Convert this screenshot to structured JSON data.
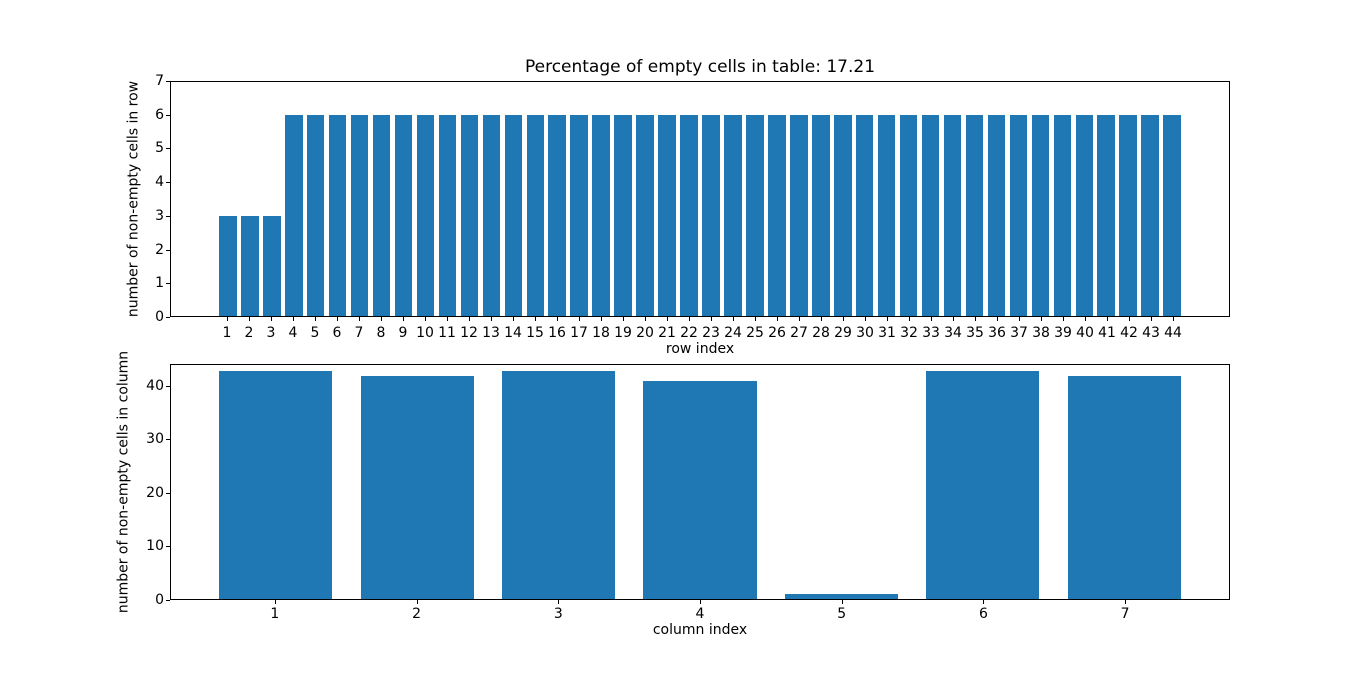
{
  "figure": {
    "background_color": "#ffffff",
    "text_color": "#000000",
    "spine_color": "#000000",
    "bar_color": "#1f77b4"
  },
  "chart_data": [
    {
      "type": "bar",
      "title": "Percentage of empty cells in table: 17.21",
      "xlabel": "row index",
      "ylabel": "number of non-empty cells in row",
      "x": [
        1,
        2,
        3,
        4,
        5,
        6,
        7,
        8,
        9,
        10,
        11,
        12,
        13,
        14,
        15,
        16,
        17,
        18,
        19,
        20,
        21,
        22,
        23,
        24,
        25,
        26,
        27,
        28,
        29,
        30,
        31,
        32,
        33,
        34,
        35,
        36,
        37,
        38,
        39,
        40,
        41,
        42,
        43,
        44
      ],
      "values": [
        3,
        3,
        3,
        6,
        6,
        6,
        6,
        6,
        6,
        6,
        6,
        6,
        6,
        6,
        6,
        6,
        6,
        6,
        6,
        6,
        6,
        6,
        6,
        6,
        6,
        6,
        6,
        6,
        6,
        6,
        6,
        6,
        6,
        6,
        6,
        6,
        6,
        6,
        6,
        6,
        6,
        6,
        6,
        6
      ],
      "bar_width": 0.8,
      "color": "#1f77b4",
      "xlim": [
        -1.59,
        46.59
      ],
      "ylim": [
        0,
        7
      ],
      "yticks": [
        0,
        1,
        2,
        3,
        4,
        5,
        6,
        7
      ],
      "grid": false,
      "legend": null
    },
    {
      "type": "bar",
      "title": "",
      "xlabel": "column index",
      "ylabel": "number of non-empty cells in column",
      "x": [
        1,
        2,
        3,
        4,
        5,
        6,
        7
      ],
      "values": [
        43,
        42,
        43,
        41,
        1,
        43,
        42
      ],
      "bar_width": 0.8,
      "color": "#1f77b4",
      "xlim": [
        0.26,
        7.74
      ],
      "ylim": [
        0,
        44.1
      ],
      "yticks": [
        0,
        10,
        20,
        30,
        40
      ],
      "grid": false,
      "legend": null
    }
  ]
}
